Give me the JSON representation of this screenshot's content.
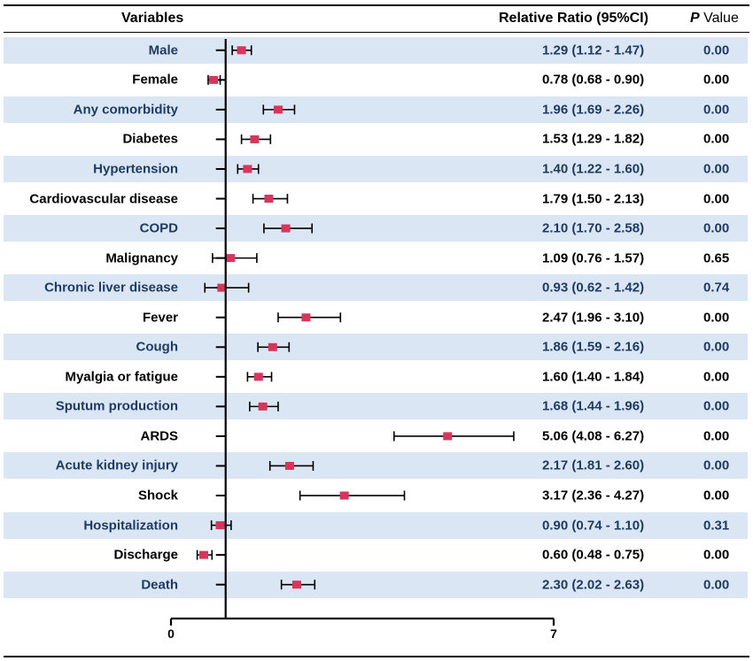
{
  "header": {
    "variables": "Variables",
    "relative_ratio": "Relative Ratio (95%CI)",
    "p_prefix": "P",
    "p_suffix": " Value"
  },
  "colors": {
    "band": "#dbe6f5",
    "marker": "#d6365c",
    "axis": "#000000"
  },
  "chart_data": {
    "type": "forest",
    "xlim": [
      0,
      7
    ],
    "xticks": [
      0,
      7
    ],
    "reference_line": 1,
    "rows": [
      {
        "label": "Male",
        "estimate": 1.29,
        "lower": 1.12,
        "upper": 1.47,
        "ci_text": "1.29 (1.12 - 1.47)",
        "p": "0.00"
      },
      {
        "label": "Female",
        "estimate": 0.78,
        "lower": 0.68,
        "upper": 0.9,
        "ci_text": "0.78 (0.68 - 0.90)",
        "p": "0.00"
      },
      {
        "label": "Any comorbidity",
        "estimate": 1.96,
        "lower": 1.69,
        "upper": 2.26,
        "ci_text": "1.96 (1.69 - 2.26)",
        "p": "0.00"
      },
      {
        "label": "Diabetes",
        "estimate": 1.53,
        "lower": 1.29,
        "upper": 1.82,
        "ci_text": "1.53 (1.29 - 1.82)",
        "p": "0.00"
      },
      {
        "label": "Hypertension",
        "estimate": 1.4,
        "lower": 1.22,
        "upper": 1.6,
        "ci_text": "1.40 (1.22 - 1.60)",
        "p": "0.00"
      },
      {
        "label": "Cardiovascular disease",
        "estimate": 1.79,
        "lower": 1.5,
        "upper": 2.13,
        "ci_text": "1.79 (1.50 - 2.13)",
        "p": "0.00"
      },
      {
        "label": "COPD",
        "estimate": 2.1,
        "lower": 1.7,
        "upper": 2.58,
        "ci_text": "2.10 (1.70 - 2.58)",
        "p": "0.00"
      },
      {
        "label": "Malignancy",
        "estimate": 1.09,
        "lower": 0.76,
        "upper": 1.57,
        "ci_text": "1.09 (0.76 - 1.57)",
        "p": "0.65"
      },
      {
        "label": "Chronic liver disease",
        "estimate": 0.93,
        "lower": 0.62,
        "upper": 1.42,
        "ci_text": "0.93 (0.62 - 1.42)",
        "p": "0.74"
      },
      {
        "label": "Fever",
        "estimate": 2.47,
        "lower": 1.96,
        "upper": 3.1,
        "ci_text": "2.47 (1.96 - 3.10)",
        "p": "0.00"
      },
      {
        "label": "Cough",
        "estimate": 1.86,
        "lower": 1.59,
        "upper": 2.16,
        "ci_text": "1.86 (1.59 - 2.16)",
        "p": "0.00"
      },
      {
        "label": "Myalgia or fatigue",
        "estimate": 1.6,
        "lower": 1.4,
        "upper": 1.84,
        "ci_text": "1.60 (1.40 - 1.84)",
        "p": "0.00"
      },
      {
        "label": "Sputum production",
        "estimate": 1.68,
        "lower": 1.44,
        "upper": 1.96,
        "ci_text": "1.68 (1.44 - 1.96)",
        "p": "0.00"
      },
      {
        "label": "ARDS",
        "estimate": 5.06,
        "lower": 4.08,
        "upper": 6.27,
        "ci_text": "5.06 (4.08 - 6.27)",
        "p": "0.00"
      },
      {
        "label": "Acute kidney injury",
        "estimate": 2.17,
        "lower": 1.81,
        "upper": 2.6,
        "ci_text": "2.17 (1.81 - 2.60)",
        "p": "0.00"
      },
      {
        "label": "Shock",
        "estimate": 3.17,
        "lower": 2.36,
        "upper": 4.27,
        "ci_text": "3.17 (2.36 - 4.27)",
        "p": "0.00"
      },
      {
        "label": "Hospitalization",
        "estimate": 0.9,
        "lower": 0.74,
        "upper": 1.1,
        "ci_text": "0.90 (0.74 - 1.10)",
        "p": "0.31"
      },
      {
        "label": "Discharge",
        "estimate": 0.6,
        "lower": 0.48,
        "upper": 0.75,
        "ci_text": "0.60 (0.48 - 0.75)",
        "p": "0.00"
      },
      {
        "label": "Death",
        "estimate": 2.3,
        "lower": 2.02,
        "upper": 2.63,
        "ci_text": "2.30 (2.02 - 2.63)",
        "p": "0.00"
      }
    ]
  }
}
